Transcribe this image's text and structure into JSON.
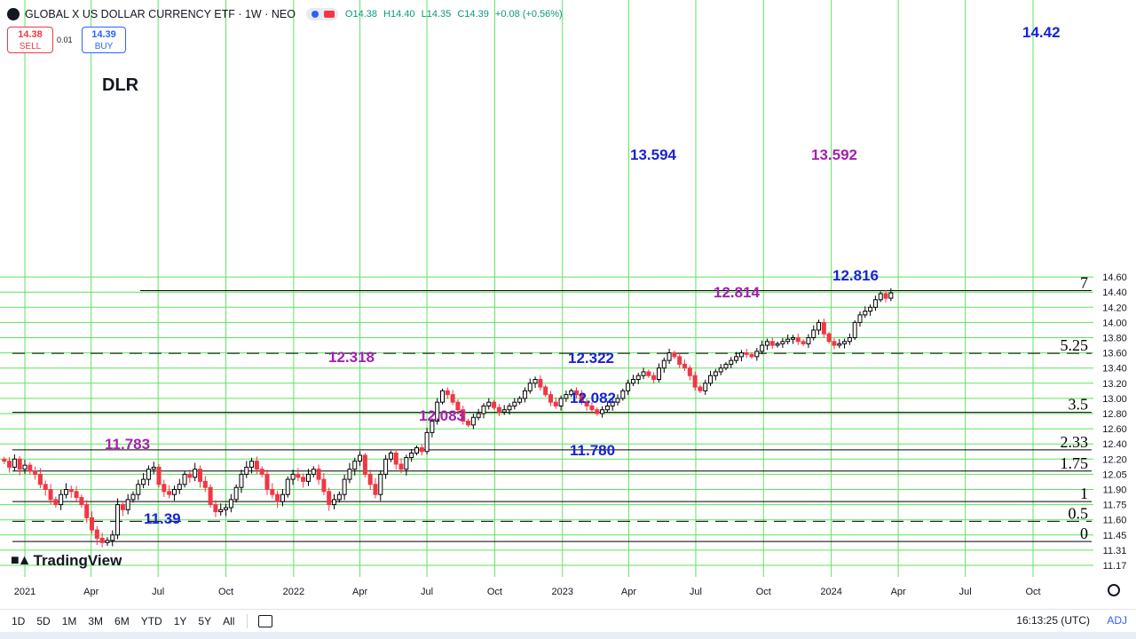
{
  "header": {
    "title": "GLOBAL X US DOLLAR CURRENCY ETF · 1W · NEO",
    "ohlc": {
      "open": "O14.38",
      "high": "H14.40",
      "low": "L14.35",
      "close": "C14.39",
      "change": "+0.08 (+0.56%)"
    }
  },
  "trade": {
    "sell_price": "14.38",
    "sell_label": "SELL",
    "spread": "0.01",
    "buy_price": "14.39",
    "buy_label": "BUY"
  },
  "symbol_label": "DLR",
  "brand": "TradingView",
  "toolbar": {
    "ranges": [
      "1D",
      "5D",
      "1M",
      "3M",
      "6M",
      "YTD",
      "1Y",
      "5Y",
      "All"
    ],
    "clock": "16:13:25 (UTC)",
    "adj": "ADJ"
  },
  "colors": {
    "up": "#000000",
    "down": "#f23645",
    "grid": "#5ee35e",
    "blue_label": "#1a22d6",
    "magenta_label": "#a51fb0"
  },
  "chart_data": {
    "type": "candlestick",
    "title": "",
    "y_tick_labels": [
      "11.17",
      "11.31",
      "11.45",
      "11.60",
      "11.75",
      "11.90",
      "12.05",
      "12.20",
      "12.40",
      "12.60",
      "12.80",
      "13.00",
      "13.20",
      "13.40",
      "13.60",
      "13.80",
      "14.00",
      "14.20",
      "14.40",
      "14.60"
    ],
    "x_tick_labels": [
      "2021",
      "Apr",
      "Jul",
      "Oct",
      "2022",
      "Apr",
      "Jul",
      "Oct",
      "2023",
      "Apr",
      "Jul",
      "Oct",
      "2024",
      "Apr",
      "Jul",
      "Oct"
    ],
    "x_tick_dates": [
      "2021-01-01",
      "2021-04-01",
      "2021-07-01",
      "2021-10-01",
      "2022-01-01",
      "2022-04-01",
      "2022-07-01",
      "2022-10-01",
      "2023-01-01",
      "2023-04-01",
      "2023-07-01",
      "2023-10-01",
      "2024-01-01",
      "2024-04-01",
      "2024-07-01",
      "2024-10-01"
    ],
    "start_date": "2020-12-04",
    "weekly_close": [
      12.18,
      12.12,
      12.2,
      12.1,
      12.14,
      12.08,
      12.05,
      11.95,
      11.9,
      11.8,
      11.75,
      11.85,
      11.9,
      11.88,
      11.82,
      11.75,
      11.62,
      11.5,
      11.42,
      11.38,
      11.4,
      11.45,
      11.75,
      11.7,
      11.8,
      11.85,
      11.95,
      12.0,
      12.1,
      12.12,
      11.95,
      11.88,
      11.85,
      11.9,
      11.95,
      12.05,
      12.02,
      12.1,
      11.98,
      11.92,
      11.75,
      11.68,
      11.7,
      11.72,
      11.8,
      11.92,
      12.05,
      12.12,
      12.18,
      12.1,
      12.05,
      11.9,
      11.85,
      11.78,
      11.85,
      12.0,
      12.05,
      12.02,
      11.98,
      12.05,
      12.1,
      12.0,
      11.88,
      11.75,
      11.8,
      11.85,
      12.0,
      12.1,
      12.18,
      12.25,
      12.05,
      11.95,
      11.85,
      12.05,
      12.2,
      12.28,
      12.15,
      12.1,
      12.22,
      12.28,
      12.35,
      12.3,
      12.55,
      12.7,
      12.95,
      13.1,
      13.05,
      12.95,
      12.85,
      12.7,
      12.65,
      12.75,
      12.8,
      12.9,
      12.95,
      12.88,
      12.82,
      12.85,
      12.9,
      12.95,
      13.0,
      13.1,
      13.2,
      13.25,
      13.15,
      13.05,
      12.95,
      12.9,
      13.0,
      13.05,
      13.1,
      13.05,
      12.95,
      12.9,
      12.85,
      12.8,
      12.85,
      12.9,
      12.95,
      13.0,
      13.1,
      13.2,
      13.25,
      13.3,
      13.35,
      13.3,
      13.25,
      13.4,
      13.5,
      13.6,
      13.55,
      13.45,
      13.4,
      13.3,
      13.15,
      13.1,
      13.2,
      13.3,
      13.35,
      13.4,
      13.45,
      13.5,
      13.55,
      13.6,
      13.58,
      13.55,
      13.62,
      13.7,
      13.75,
      13.7,
      13.72,
      13.75,
      13.78,
      13.8,
      13.75,
      13.72,
      13.8,
      13.9,
      14.0,
      13.85,
      13.75,
      13.7,
      13.72,
      13.75,
      13.8,
      14.0,
      14.1,
      14.15,
      14.2,
      14.3,
      14.38,
      14.32,
      14.39
    ],
    "pivot_labels": [
      {
        "text": "14.42",
        "color": "blue"
      },
      {
        "text": "13.594",
        "color": "blue"
      },
      {
        "text": "13.592",
        "color": "magenta"
      },
      {
        "text": "12.816",
        "color": "blue"
      },
      {
        "text": "12.814",
        "color": "magenta"
      },
      {
        "text": "12.318",
        "color": "magenta"
      },
      {
        "text": "12.322",
        "color": "blue"
      },
      {
        "text": "12.083",
        "color": "magenta"
      },
      {
        "text": "12.082",
        "color": "blue"
      },
      {
        "text": "11.783",
        "color": "magenta"
      },
      {
        "text": "11.780",
        "color": "blue"
      },
      {
        "text": "11.39",
        "color": "blue"
      }
    ],
    "levels": [
      {
        "label": "7",
        "price": 14.42,
        "style": "solid"
      },
      {
        "label": "5.25",
        "price": 13.594,
        "style": "dashed"
      },
      {
        "label": "3.5",
        "price": 12.816,
        "style": "solid"
      },
      {
        "label": "2.33",
        "price": 12.322,
        "style": "solid"
      },
      {
        "label": "1.75",
        "price": 12.082,
        "style": "solid"
      },
      {
        "label": "1",
        "price": 11.78,
        "style": "solid"
      },
      {
        "label": "0.5",
        "price": 11.585,
        "style": "dashed"
      },
      {
        "label": "0",
        "price": 11.39,
        "style": "solid"
      }
    ],
    "grid": true
  }
}
